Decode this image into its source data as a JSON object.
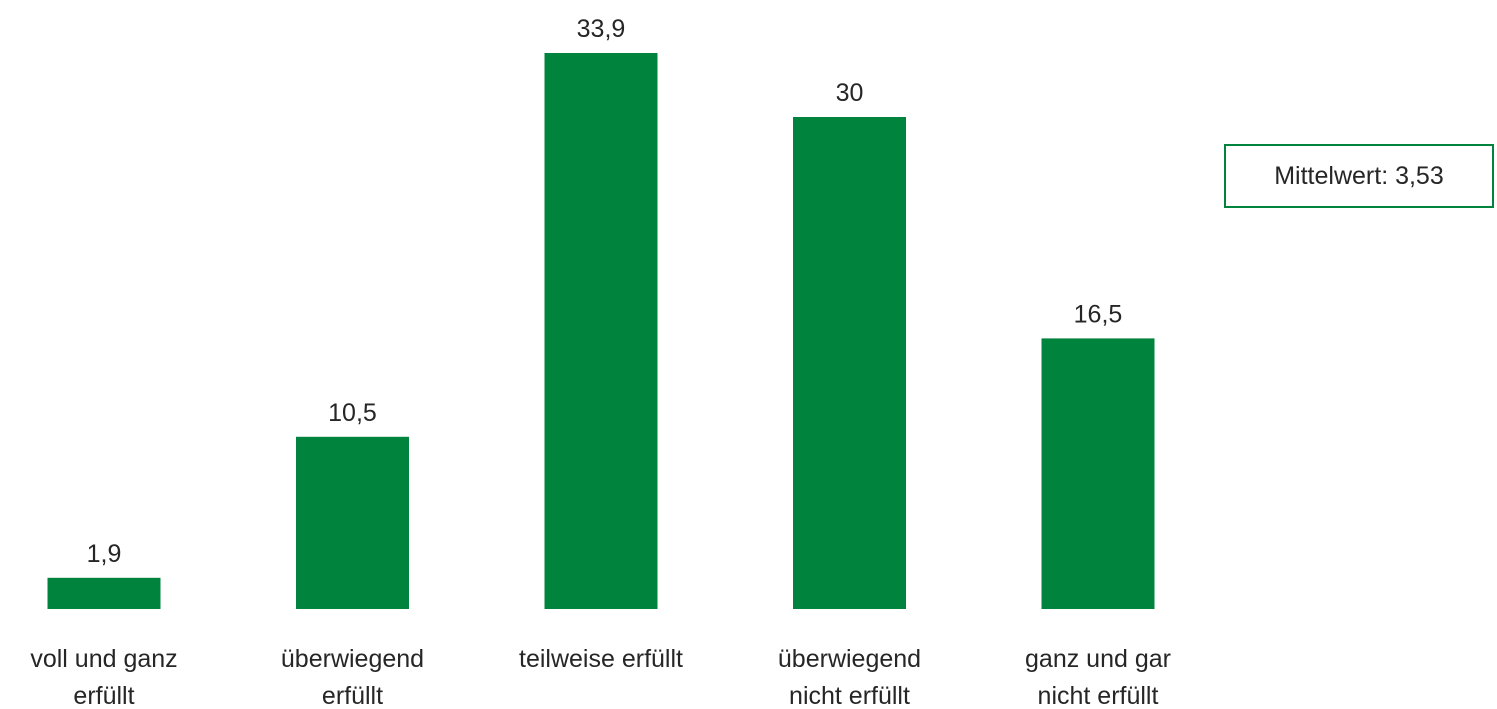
{
  "chart_data": {
    "type": "bar",
    "categories": [
      [
        "voll und ganz",
        "erfüllt"
      ],
      [
        "überwiegend",
        "erfüllt"
      ],
      [
        "teilweise erfüllt"
      ],
      [
        "überwiegend",
        "nicht erfüllt"
      ],
      [
        "ganz und gar",
        "nicht erfüllt"
      ]
    ],
    "values": [
      1.9,
      10.5,
      33.9,
      30,
      16.5
    ],
    "value_labels": [
      "1,9",
      "10,5",
      "33,9",
      "30",
      "16,5"
    ],
    "title": "",
    "xlabel": "",
    "ylabel": "",
    "ylim": [
      0,
      33.9
    ],
    "grid": false,
    "bar_color": "#00843d"
  },
  "annotation": {
    "mean_label": "Mittelwert: 3,53"
  }
}
